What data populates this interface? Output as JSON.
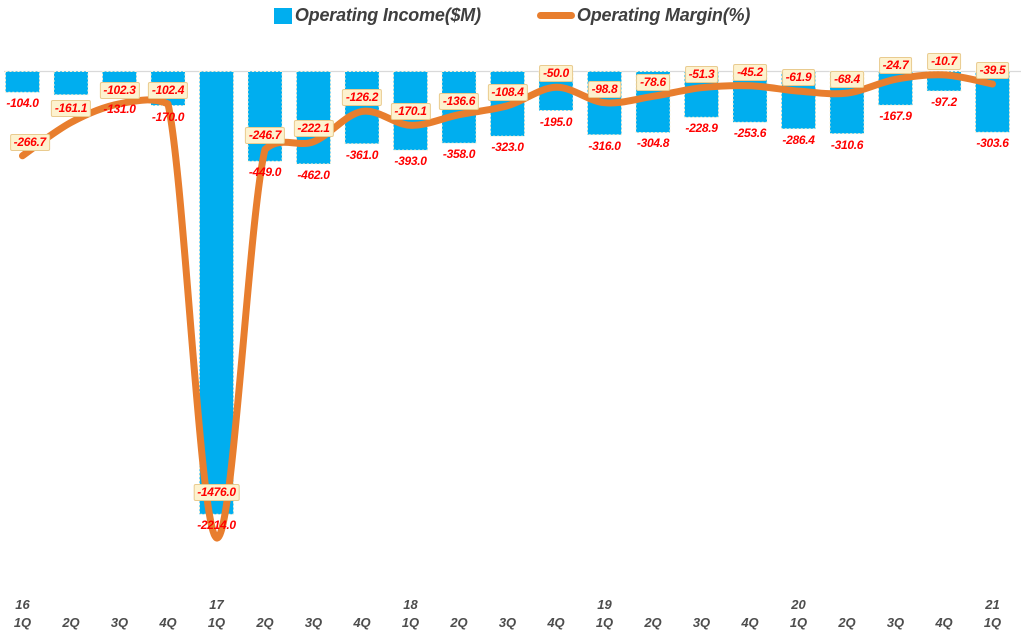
{
  "legend": {
    "items": [
      {
        "label": "Operating Income($M)",
        "swatch": "blue-square"
      },
      {
        "label": "Operating Margin(%)",
        "swatch": "orange-line"
      }
    ]
  },
  "colors": {
    "bar": "#00AEEF",
    "bar_border": "#FBF0D2",
    "line": "#E87E2E",
    "label_text": "#FF0000",
    "label_box_bg": "#FDF2CF",
    "label_box_border": "#E9CB8F",
    "legend_text": "#3F3F3F",
    "axis_text": "#4D4D4D",
    "gridline": "#D9D9D9",
    "background": "#FFFFFF"
  },
  "chart_data": {
    "type": "bar",
    "subtype": "combo-bar-line",
    "categories": [
      "1Q",
      "2Q",
      "3Q",
      "4Q",
      "1Q",
      "2Q",
      "3Q",
      "4Q",
      "1Q",
      "2Q",
      "3Q",
      "4Q",
      "1Q",
      "2Q",
      "3Q",
      "4Q",
      "1Q",
      "2Q",
      "3Q",
      "4Q",
      "1Q"
    ],
    "year_marks": [
      {
        "index": 0,
        "label": "16"
      },
      {
        "index": 4,
        "label": "17"
      },
      {
        "index": 8,
        "label": "18"
      },
      {
        "index": 12,
        "label": "19"
      },
      {
        "index": 16,
        "label": "20"
      },
      {
        "index": 20,
        "label": "21"
      }
    ],
    "series": [
      {
        "name": "Operating Income($M)",
        "type": "bar",
        "values": [
          -104.0,
          -116.0,
          -131.0,
          -170.0,
          -2214.0,
          -449.0,
          -462.0,
          -361.0,
          -393.0,
          -358.0,
          -323.0,
          -195.0,
          -316.0,
          -304.8,
          -228.9,
          -253.6,
          -286.4,
          -310.6,
          -167.9,
          -97.2,
          -303.6
        ]
      },
      {
        "name": "Operating Margin(%)",
        "type": "line",
        "values": [
          -266.7,
          -161.1,
          -102.3,
          -102.4,
          -1476.0,
          -246.7,
          -222.1,
          -126.2,
          -170.1,
          -136.6,
          -108.4,
          -50.0,
          -98.8,
          -78.6,
          -51.3,
          -45.2,
          -61.9,
          -68.4,
          -24.7,
          -10.7,
          -39.5
        ]
      }
    ],
    "title": "",
    "xlabel": "",
    "ylabel": "",
    "baseline_value": 0,
    "bar_axis_range_est": [
      -2400,
      0
    ],
    "line_axis_range_est": [
      -1520,
      0
    ],
    "bars_hang_from_top": true,
    "grid": "single zero gridline at top",
    "legend_position": "top-center",
    "data_labels": {
      "decimals": 1,
      "bar_label_style": "plain red below bar end",
      "line_label_style": "red text in cream box above point"
    }
  }
}
